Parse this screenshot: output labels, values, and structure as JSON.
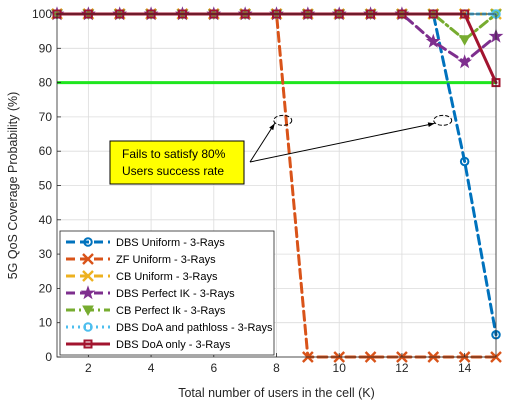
{
  "chart_data": {
    "type": "line",
    "xlabel": "Total number of users in the cell (K)",
    "ylabel": "5G QoS Coverage Probability (%)",
    "xlim": [
      1,
      15
    ],
    "ylim": [
      0,
      100
    ],
    "xticks": [
      2,
      4,
      6,
      8,
      10,
      12,
      14
    ],
    "yticks": [
      0,
      10,
      20,
      30,
      40,
      50,
      60,
      70,
      80,
      90,
      100
    ],
    "grid": true,
    "legend_position": "bottom-left",
    "threshold": {
      "value": 80,
      "color": "#1ee61e"
    },
    "annotation": {
      "lines": [
        "Fails to satisfy 80%",
        "Users success rate"
      ],
      "box_color": "#ffff00",
      "points": [
        [
          8.2,
          69
        ],
        [
          13.3,
          69
        ]
      ]
    },
    "x": [
      1,
      2,
      3,
      4,
      5,
      6,
      7,
      8,
      9,
      10,
      11,
      12,
      13,
      14,
      15
    ],
    "series": [
      {
        "name": "DBS Uniform - 3-Rays",
        "color": "#0072bd",
        "marker": "circle",
        "dash": "dash",
        "values": [
          100,
          100,
          100,
          100,
          100,
          100,
          100,
          100,
          100,
          100,
          100,
          100,
          100,
          57,
          6.5
        ]
      },
      {
        "name": "ZF Uniform - 3-Rays",
        "color": "#d95319",
        "marker": "x",
        "dash": "dash",
        "values": [
          100,
          100,
          100,
          100,
          100,
          100,
          100,
          100,
          0,
          0,
          0,
          0,
          0,
          0,
          0
        ]
      },
      {
        "name": "CB Uniform - 3-Rays",
        "color": "#edb120",
        "marker": "x",
        "dash": "dash",
        "values": [
          100,
          100,
          100,
          100,
          100,
          100,
          100,
          100,
          100,
          100,
          100,
          100,
          100,
          100,
          100
        ]
      },
      {
        "name": "DBS Perfect IK - 3-Rays",
        "color": "#7e2f8e",
        "marker": "star",
        "dash": "dash",
        "values": [
          100,
          100,
          100,
          100,
          100,
          100,
          100,
          100,
          100,
          100,
          100,
          100,
          92,
          86,
          93.5
        ]
      },
      {
        "name": "CB Perfect Ik - 3-Rays",
        "color": "#77ac30",
        "marker": "triangle-down",
        "dash": "dashdot",
        "values": [
          100,
          100,
          100,
          100,
          100,
          100,
          100,
          100,
          100,
          100,
          100,
          100,
          100,
          92.5,
          100
        ]
      },
      {
        "name": "DBS DoA and pathloss - 3-Rays",
        "color": "#4dbeee",
        "marker": "circle",
        "dash": "dot",
        "values": [
          100,
          100,
          100,
          100,
          100,
          100,
          100,
          100,
          100,
          100,
          100,
          100,
          100,
          100,
          100
        ]
      },
      {
        "name": "DBS DoA only - 3-Rays",
        "color": "#a2142f",
        "marker": "square",
        "dash": "solid",
        "values": [
          100,
          100,
          100,
          100,
          100,
          100,
          100,
          100,
          100,
          100,
          100,
          100,
          100,
          100,
          80
        ]
      }
    ]
  }
}
